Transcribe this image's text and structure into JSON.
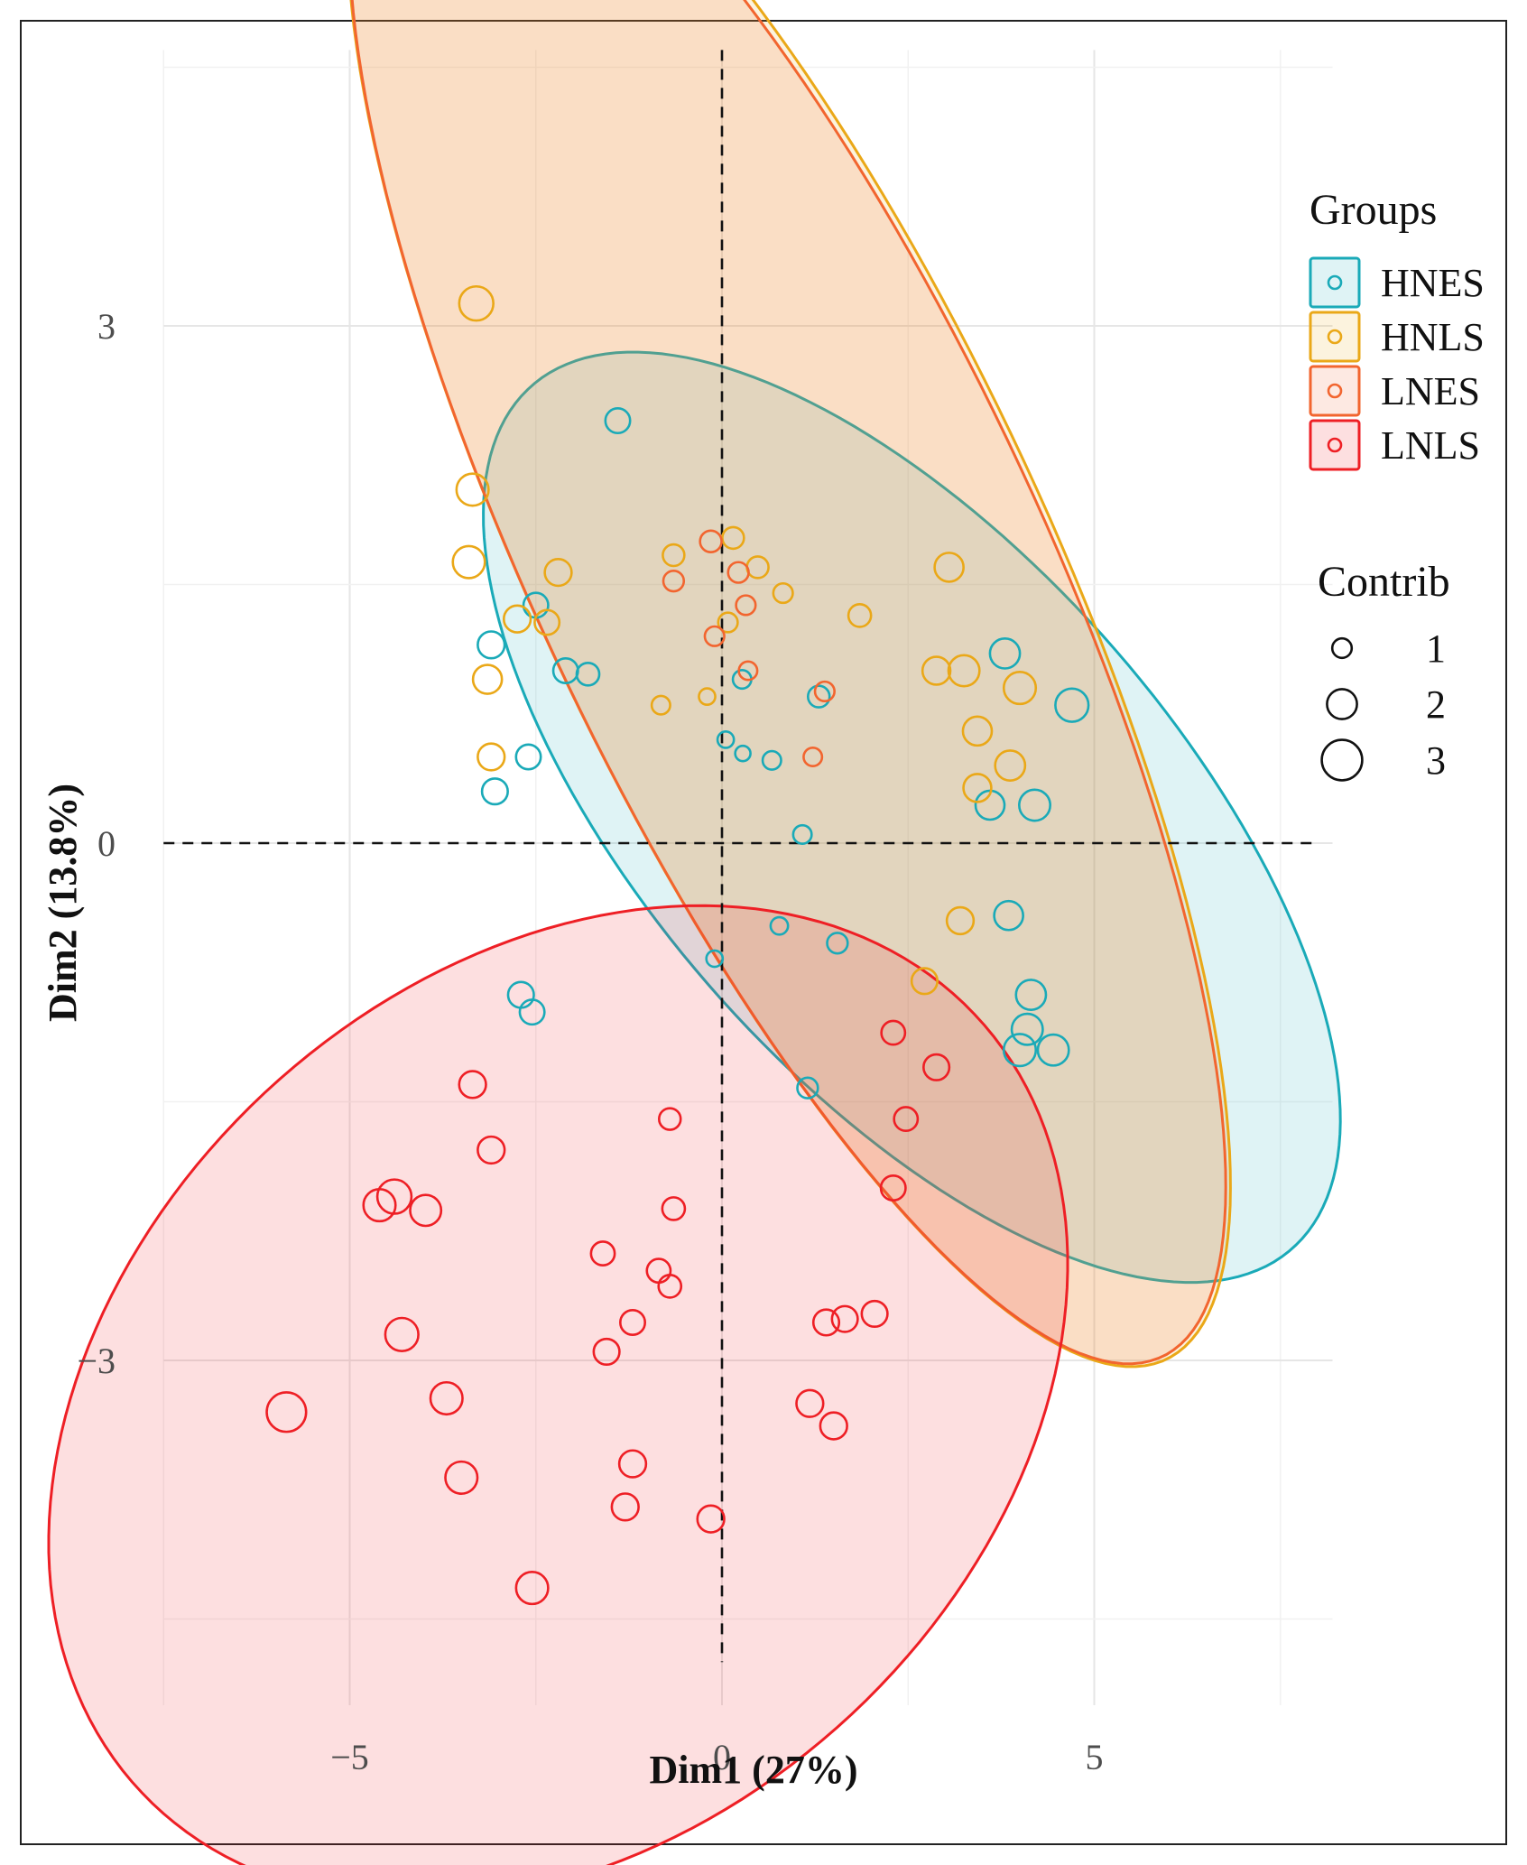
{
  "chart_data": {
    "type": "scatter",
    "title": "",
    "xlabel": "Dim1 (27%)",
    "ylabel": "Dim2 (13.8%)",
    "xlim": [
      -7.5,
      8.2
    ],
    "ylim": [
      -5,
      4.6
    ],
    "xticks": [
      -5,
      0,
      5
    ],
    "xtick_labels": [
      "−5",
      "0",
      "5"
    ],
    "yticks": [
      -3,
      0,
      3
    ],
    "ytick_labels": [
      "−3",
      "0",
      "3"
    ],
    "minor_x": [
      -7.5,
      -2.5,
      2.5,
      7.5
    ],
    "minor_y": [
      -4.5,
      -1.5,
      1.5,
      4.5
    ],
    "grid": true,
    "reference_lines": {
      "x": 0,
      "y": 0,
      "style": "dashed"
    },
    "legend_groups": {
      "title": "Groups",
      "position": "right",
      "items": [
        {
          "label": "HNES",
          "color": "#1aaab8"
        },
        {
          "label": "HNLS",
          "color": "#eaa818"
        },
        {
          "label": "LNES",
          "color": "#f2652f"
        },
        {
          "label": "LNLS",
          "color": "#ee1f25"
        }
      ]
    },
    "legend_size": {
      "title": "Contrib",
      "items": [
        {
          "label": "1",
          "value": 1
        },
        {
          "label": "2",
          "value": 2
        },
        {
          "label": "3",
          "value": 3
        }
      ]
    },
    "ellipses": [
      {
        "group": "HNES",
        "cx": 2.55,
        "cy": 0.15,
        "rx": 6.05,
        "ry": 1.95,
        "angle": -19,
        "color": "#1aaab8"
      },
      {
        "group": "HNLS",
        "cx": 0.9,
        "cy": 1.65,
        "rx": 7.15,
        "ry": 2.45,
        "angle": -36.5,
        "color": "#eaa818"
      },
      {
        "group": "LNES",
        "cx": 0.88,
        "cy": 1.63,
        "rx": 7.1,
        "ry": 2.42,
        "angle": -36.5,
        "color": "#f2652f"
      },
      {
        "group": "LNLS",
        "cx": -2.2,
        "cy": -3.25,
        "rx": 6.9,
        "ry": 2.75,
        "angle": 8,
        "color": "#ee1f25"
      }
    ],
    "series": [
      {
        "name": "HNES",
        "color": "#1aaab8",
        "points": [
          [
            -1.4,
            2.45,
            1.5
          ],
          [
            -2.5,
            1.38,
            1.5
          ],
          [
            -3.1,
            1.15,
            1.7
          ],
          [
            -2.1,
            1.0,
            1.5
          ],
          [
            -1.8,
            0.98,
            1.3
          ],
          [
            -2.6,
            0.5,
            1.5
          ],
          [
            -3.05,
            0.3,
            1.6
          ],
          [
            0.27,
            0.95,
            0.9
          ],
          [
            1.3,
            0.85,
            1.2
          ],
          [
            0.05,
            0.6,
            0.7
          ],
          [
            0.28,
            0.52,
            0.6
          ],
          [
            0.67,
            0.48,
            0.9
          ],
          [
            1.08,
            0.05,
            0.9
          ],
          [
            3.8,
            1.1,
            2.0
          ],
          [
            4.7,
            0.8,
            2.3
          ],
          [
            3.6,
            0.22,
            1.9
          ],
          [
            4.2,
            0.22,
            2.1
          ],
          [
            3.85,
            -0.42,
            1.9
          ],
          [
            0.77,
            -0.48,
            0.8
          ],
          [
            1.55,
            -0.58,
            1.1
          ],
          [
            -0.1,
            -0.67,
            0.7
          ],
          [
            -2.7,
            -0.88,
            1.6
          ],
          [
            -2.55,
            -0.98,
            1.5
          ],
          [
            4.15,
            -0.88,
            2.0
          ],
          [
            4.1,
            -1.08,
            2.1
          ],
          [
            4.0,
            -1.2,
            2.2
          ],
          [
            4.45,
            -1.2,
            2.1
          ],
          [
            1.15,
            -1.42,
            1.1
          ]
        ]
      },
      {
        "name": "HNLS",
        "color": "#eaa818",
        "points": [
          [
            -3.3,
            3.13,
            2.4
          ],
          [
            -3.35,
            2.05,
            2.2
          ],
          [
            -3.4,
            1.63,
            2.2
          ],
          [
            -2.2,
            1.57,
            1.7
          ],
          [
            -2.75,
            1.3,
            1.7
          ],
          [
            -2.35,
            1.28,
            1.5
          ],
          [
            -3.15,
            0.95,
            1.9
          ],
          [
            -3.1,
            0.5,
            1.7
          ],
          [
            -0.65,
            1.67,
            1.2
          ],
          [
            0.15,
            1.77,
            1.2
          ],
          [
            0.48,
            1.6,
            1.2
          ],
          [
            0.82,
            1.45,
            1.0
          ],
          [
            0.08,
            1.28,
            1.0
          ],
          [
            -0.82,
            0.8,
            0.9
          ],
          [
            -0.2,
            0.85,
            0.7
          ],
          [
            1.85,
            1.32,
            1.3
          ],
          [
            3.05,
            1.6,
            1.9
          ],
          [
            2.88,
            1.0,
            1.8
          ],
          [
            3.25,
            1.0,
            2.1
          ],
          [
            4.0,
            0.9,
            2.2
          ],
          [
            3.43,
            0.65,
            1.9
          ],
          [
            3.87,
            0.45,
            2.0
          ],
          [
            3.43,
            0.32,
            1.8
          ],
          [
            3.2,
            -0.45,
            1.7
          ],
          [
            2.72,
            -0.8,
            1.6
          ]
        ]
      },
      {
        "name": "LNES",
        "color": "#f2652f",
        "points": [
          [
            -0.15,
            1.75,
            1.2
          ],
          [
            -0.65,
            1.52,
            1.1
          ],
          [
            0.22,
            1.57,
            1.1
          ],
          [
            0.32,
            1.38,
            1.0
          ],
          [
            -0.1,
            1.2,
            1.0
          ],
          [
            0.35,
            1.0,
            0.9
          ],
          [
            1.38,
            0.88,
            1.0
          ],
          [
            1.22,
            0.5,
            0.9
          ]
        ]
      },
      {
        "name": "LNLS",
        "color": "#ee1f25",
        "points": [
          [
            2.3,
            -1.1,
            1.4
          ],
          [
            2.88,
            -1.3,
            1.6
          ],
          [
            -3.35,
            -1.4,
            1.7
          ],
          [
            -0.7,
            -1.6,
            1.2
          ],
          [
            2.47,
            -1.6,
            1.4
          ],
          [
            -3.1,
            -1.78,
            1.7
          ],
          [
            2.3,
            -2.0,
            1.5
          ],
          [
            -4.6,
            -2.1,
            2.2
          ],
          [
            -4.4,
            -2.05,
            2.4
          ],
          [
            -3.98,
            -2.13,
            2.1
          ],
          [
            -0.65,
            -2.12,
            1.3
          ],
          [
            -1.6,
            -2.38,
            1.4
          ],
          [
            -0.85,
            -2.48,
            1.4
          ],
          [
            -0.7,
            -2.57,
            1.3
          ],
          [
            -4.3,
            -2.85,
            2.3
          ],
          [
            -1.2,
            -2.78,
            1.5
          ],
          [
            -1.55,
            -2.95,
            1.6
          ],
          [
            2.05,
            -2.73,
            1.6
          ],
          [
            1.65,
            -2.76,
            1.6
          ],
          [
            1.4,
            -2.78,
            1.6
          ],
          [
            -5.85,
            -3.3,
            2.9
          ],
          [
            -3.7,
            -3.22,
            2.2
          ],
          [
            1.18,
            -3.25,
            1.7
          ],
          [
            1.5,
            -3.38,
            1.7
          ],
          [
            -3.5,
            -3.68,
            2.2
          ],
          [
            -1.2,
            -3.6,
            1.7
          ],
          [
            -1.3,
            -3.85,
            1.7
          ],
          [
            -0.15,
            -3.92,
            1.7
          ],
          [
            -2.55,
            -4.32,
            2.2
          ]
        ]
      }
    ]
  }
}
